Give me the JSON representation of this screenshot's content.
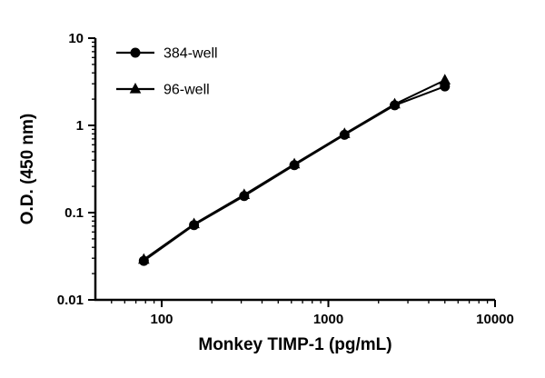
{
  "chart_data": {
    "type": "line",
    "title": "",
    "xlabel": "Monkey TIMP-1 (pg/mL)",
    "ylabel": "O.D. (450 nm)",
    "x_scale": "log",
    "y_scale": "log",
    "xlim": [
      40,
      10000
    ],
    "ylim": [
      0.01,
      10
    ],
    "x_ticks": [
      100,
      1000,
      10000
    ],
    "y_ticks": [
      0.01,
      0.1,
      1,
      10
    ],
    "grid": false,
    "legend_position": "top-left-inside",
    "line_color": "#000000",
    "series": [
      {
        "name": "384-well",
        "marker": "circle",
        "color": "#000000",
        "x": [
          78.1,
          156.3,
          312.5,
          625,
          1250,
          2500,
          5000
        ],
        "y": [
          0.028,
          0.072,
          0.155,
          0.35,
          0.78,
          1.7,
          2.8
        ]
      },
      {
        "name": "96-well",
        "marker": "triangle",
        "color": "#000000",
        "x": [
          78.1,
          156.3,
          312.5,
          625,
          1250,
          2500,
          5000
        ],
        "y": [
          0.029,
          0.074,
          0.16,
          0.36,
          0.8,
          1.75,
          3.3
        ]
      }
    ]
  }
}
